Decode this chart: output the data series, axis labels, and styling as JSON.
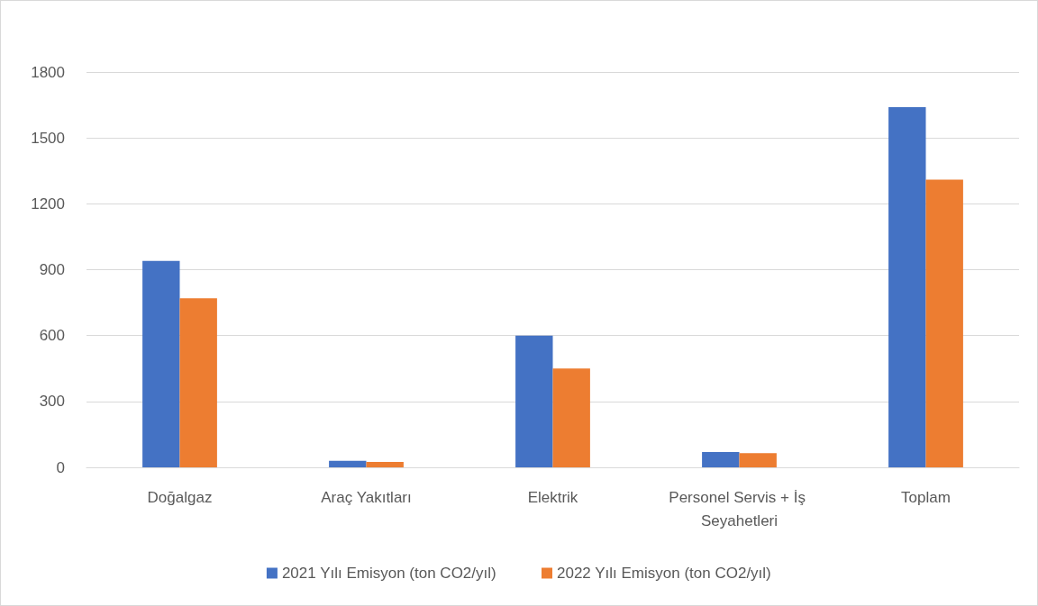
{
  "chart_data": {
    "type": "bar",
    "categories": [
      "Doğalgaz",
      "Araç Yakıtları",
      "Elektrik",
      "Personel Servis + İş Seyahetleri",
      "Toplam"
    ],
    "series": [
      {
        "name": "2021 Yılı Emisyon (ton CO2/yıl)",
        "color": "#4472c4",
        "values": [
          940,
          30,
          600,
          70,
          1640
        ]
      },
      {
        "name": "2022 Yılı Emisyon (ton CO2/yıl)",
        "color": "#ed7d31",
        "values": [
          770,
          25,
          450,
          65,
          1310
        ]
      }
    ],
    "ylim": [
      0,
      1800
    ],
    "yticks": [
      0,
      300,
      600,
      900,
      1200,
      1500,
      1800
    ],
    "grid": "y",
    "legend": "bottom"
  }
}
